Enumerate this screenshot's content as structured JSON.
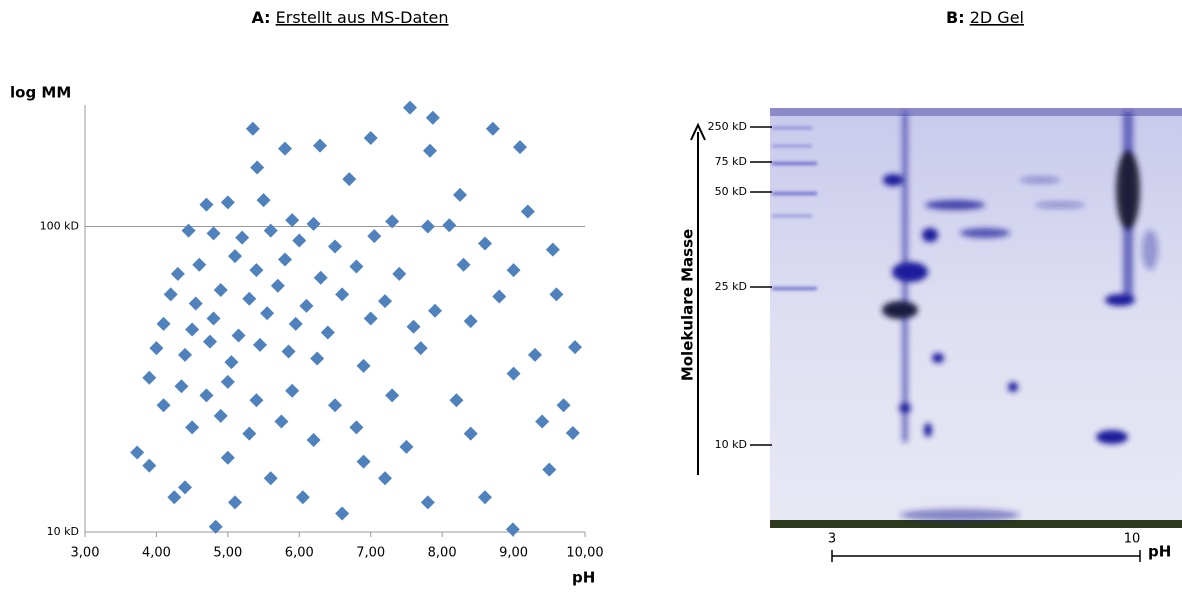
{
  "chart_data": {
    "type": "scatter",
    "panel": "A:",
    "title": "Erstellt aus MS-Daten",
    "y_label": "log MM",
    "x_label": "pH",
    "color": "#4f81bd",
    "log_y": true,
    "grid": true,
    "xlim": [
      3,
      10
    ],
    "ylim": [
      10,
      250
    ],
    "xticks": [
      {
        "value": 3,
        "label": "3,00"
      },
      {
        "value": 4,
        "label": "4,00"
      },
      {
        "value": 5,
        "label": "5,00"
      },
      {
        "value": 6,
        "label": "6,00"
      },
      {
        "value": 7,
        "label": "7,00"
      },
      {
        "value": 8,
        "label": "8,00"
      },
      {
        "value": 9,
        "label": "9,00"
      },
      {
        "value": 10,
        "label": "10,00"
      }
    ],
    "yticks": [
      {
        "value": 10,
        "label": "10 kD"
      },
      {
        "value": 100,
        "label": "100 kD"
      }
    ],
    "x": [
      7.55,
      5.35,
      7.87,
      8.71,
      9.09,
      7.0,
      5.8,
      6.29,
      5.41,
      7.83,
      6.7,
      8.25,
      4.7,
      5.0,
      5.5,
      5.9,
      6.2,
      7.3,
      8.1,
      9.2,
      4.45,
      4.8,
      5.2,
      5.6,
      6.0,
      6.5,
      7.05,
      7.8,
      8.6,
      9.55,
      4.3,
      4.6,
      5.1,
      5.4,
      5.8,
      6.3,
      6.8,
      7.4,
      8.3,
      9.0,
      4.2,
      4.55,
      4.9,
      5.3,
      5.7,
      6.1,
      6.6,
      7.2,
      7.9,
      8.8,
      4.1,
      4.5,
      4.8,
      5.15,
      5.55,
      5.95,
      6.4,
      7.0,
      7.6,
      8.4,
      4.0,
      4.4,
      4.75,
      5.05,
      5.45,
      5.85,
      6.25,
      6.9,
      7.7,
      9.3,
      3.9,
      4.35,
      4.7,
      5.0,
      5.4,
      5.9,
      6.5,
      7.3,
      8.2,
      9.0,
      4.1,
      4.5,
      4.9,
      5.3,
      5.75,
      6.2,
      6.8,
      7.5,
      8.4,
      9.4,
      3.73,
      3.9,
      4.4,
      4.83,
      5.1,
      5.6,
      6.05,
      6.6,
      7.8,
      8.99,
      9.83,
      9.86,
      9.5,
      9.7,
      8.6,
      7.2,
      6.9,
      5.0,
      4.25,
      9.6
    ],
    "values": [
      245,
      209,
      227,
      209,
      182,
      195,
      180,
      184,
      156,
      177,
      143,
      127,
      118,
      120,
      122,
      105,
      102,
      104,
      101,
      112,
      97,
      95,
      92,
      97,
      90,
      86,
      93,
      100,
      88,
      84,
      70,
      75,
      80,
      72,
      78,
      68,
      74,
      70,
      75,
      72,
      60,
      56,
      62,
      58,
      64,
      55,
      60,
      57,
      53,
      59,
      48,
      46,
      50,
      44,
      52,
      48,
      45,
      50,
      47,
      49,
      40,
      38,
      42,
      36,
      41,
      39,
      37,
      35,
      40,
      38,
      32,
      30,
      28,
      31,
      27,
      29,
      26,
      28,
      27,
      33,
      26,
      22,
      24,
      21,
      23,
      20,
      22,
      19,
      21,
      23,
      18.2,
      16.5,
      14,
      10.4,
      12.5,
      15,
      13,
      11.5,
      12.5,
      10.2,
      21.1,
      40.3,
      16,
      26,
      13,
      15,
      17,
      17.5,
      13,
      60
    ]
  },
  "gel": {
    "panel": "B:",
    "title": "2D Gel",
    "axis_label": "Molekulare Masse",
    "markers": [
      "250 kD",
      "75 kD",
      "50 kD",
      "25 kD",
      "10 kD"
    ],
    "ph_start": "3",
    "ph_end": "10",
    "ph_label": "pH"
  }
}
